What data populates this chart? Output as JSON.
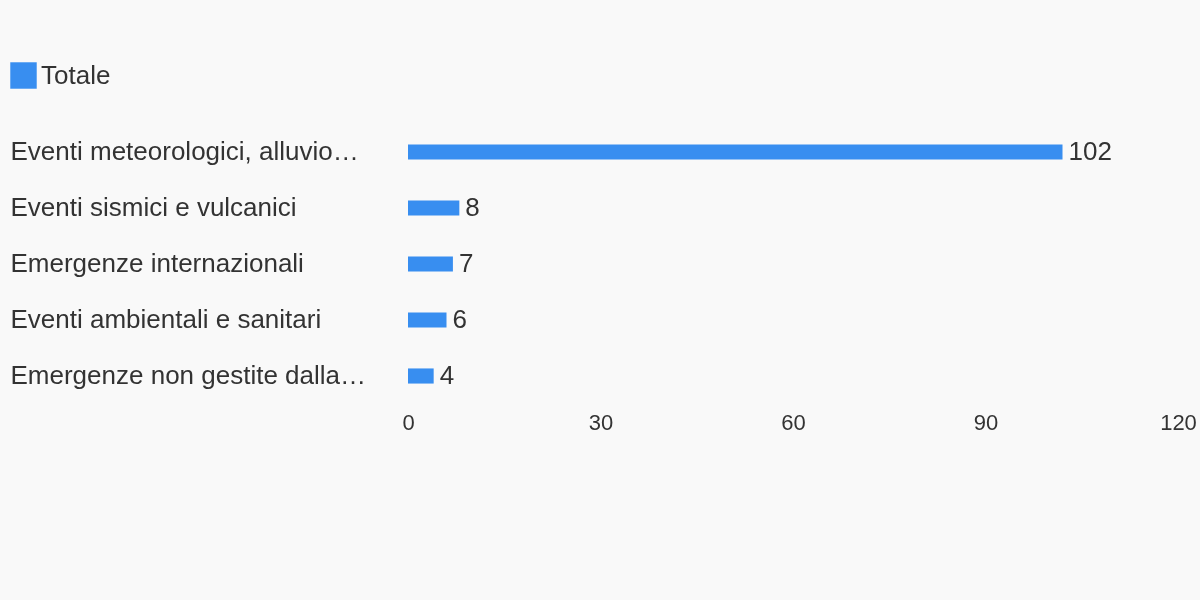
{
  "chart_data": {
    "type": "bar",
    "orientation": "horizontal",
    "categories": [
      "Eventi meteorologici, alluvio…",
      "Eventi sismici e vulcanici",
      "Emergenze internazionali",
      "Eventi ambientali e sanitari",
      "Emergenze non gestite dalla…"
    ],
    "series": [
      {
        "name": "Totale",
        "color": "#388ef0",
        "values": [
          102,
          8,
          7,
          6,
          4
        ]
      }
    ],
    "xlim": [
      0,
      120
    ],
    "xticks": [
      0,
      30,
      60,
      90,
      120
    ],
    "data_labels": true,
    "legend": "top left",
    "grid": false
  }
}
